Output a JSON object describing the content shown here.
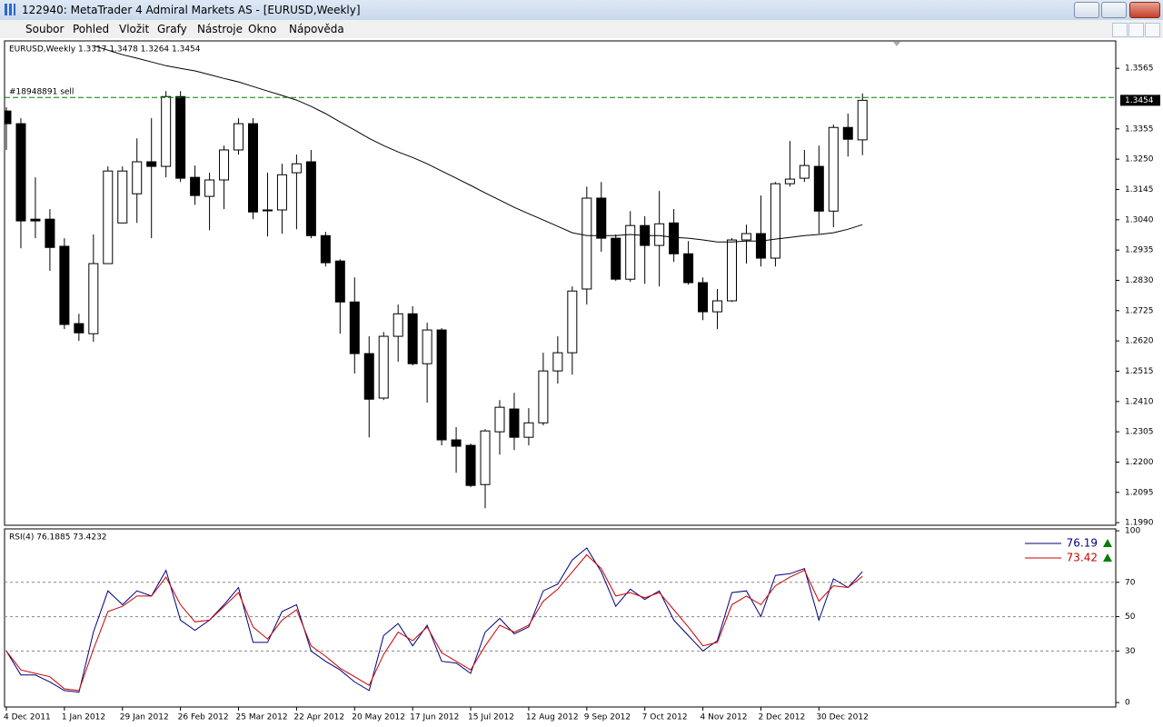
{
  "window": {
    "title": "122940: MetaTrader 4 Admiral Markets AS - [EURUSD,Weekly]",
    "menu": [
      "Soubor",
      "Pohled",
      "Vložit",
      "Grafy",
      "Nástroje",
      "Okno",
      "Nápověda"
    ]
  },
  "chart_data": [
    {
      "type": "candlestick",
      "title": "EURUSD,Weekly  1.3317 1.3478 1.3264 1.3454",
      "categories": [
        "4 Dec 2011",
        null,
        null,
        null,
        "1 Jan 2012",
        null,
        null,
        null,
        "29 Jan 2012",
        null,
        null,
        null,
        "26 Feb 2012",
        null,
        null,
        null,
        "25 Mar 2012",
        null,
        null,
        null,
        "22 Apr 2012",
        null,
        null,
        null,
        "20 May 2012",
        null,
        null,
        null,
        "17 Jun 2012",
        null,
        null,
        null,
        "15 Jul 2012",
        null,
        null,
        null,
        "12 Aug 2012",
        null,
        null,
        null,
        "9 Sep 2012",
        null,
        null,
        null,
        "7 Oct 2012",
        null,
        null,
        null,
        "4 Nov 2012",
        null,
        null,
        null,
        "2 Dec 2012",
        null,
        null,
        null,
        "30 Dec 2012",
        null,
        null,
        null
      ],
      "open": [
        1.3417,
        1.3373,
        1.3042,
        1.3042,
        1.2948,
        1.268,
        1.2645,
        1.2888,
        1.3029,
        1.313,
        1.3241,
        1.3225,
        1.3467,
        1.3187,
        1.3121,
        1.3178,
        1.3282,
        1.3373,
        1.3074,
        1.3074,
        1.3203,
        1.3241,
        1.2985,
        1.2897,
        1.2755,
        1.2576,
        1.2422,
        1.2636,
        1.2714,
        1.2541,
        1.2658,
        1.2277,
        1.2258,
        1.2122,
        1.2305,
        1.2384,
        1.2286,
        1.2336,
        1.2516,
        1.2579,
        1.28,
        1.3115,
        1.2976,
        1.2834,
        1.302,
        1.2951,
        1.3029,
        1.2922,
        1.2822,
        1.2721,
        1.2759,
        1.297,
        1.2992,
        1.2907,
        1.3165,
        1.3184,
        1.3225,
        1.307,
        1.336,
        1.3317
      ],
      "high": [
        1.343,
        1.3392,
        1.3187,
        1.3077,
        1.2976,
        1.2714,
        1.2989,
        1.3225,
        1.3225,
        1.3322,
        1.3392,
        1.3486,
        1.3486,
        1.3228,
        1.3203,
        1.3297,
        1.3392,
        1.3392,
        1.3203,
        1.3234,
        1.3266,
        1.3282,
        1.2998,
        1.2903,
        1.284,
        1.2636,
        1.2651,
        1.2746,
        1.274,
        1.2683,
        1.2664,
        1.2321,
        1.2264,
        1.2314,
        1.2415,
        1.244,
        1.2387,
        1.2579,
        1.2636,
        1.2809,
        1.3155,
        1.3171,
        1.2989,
        1.307,
        1.3052,
        1.314,
        1.3077,
        1.2966,
        1.284,
        1.28,
        1.2976,
        1.3023,
        1.3124,
        1.3171,
        1.3313,
        1.3282,
        1.3297,
        1.337,
        1.3408,
        1.3478
      ],
      "low": [
        1.3282,
        1.2941,
        1.2976,
        1.2863,
        1.2661,
        1.262,
        1.2617,
        1.2888,
        1.3029,
        1.3029,
        1.2976,
        1.3187,
        1.3171,
        1.3092,
        1.3004,
        1.3077,
        1.3266,
        1.3042,
        1.2982,
        1.2992,
        1.3007,
        1.2976,
        1.2878,
        1.2645,
        1.2507,
        1.2286,
        1.2415,
        1.2548,
        1.2535,
        1.2406,
        1.2258,
        1.2163,
        1.2113,
        1.204,
        1.2226,
        1.2242,
        1.2258,
        1.2327,
        1.2472,
        1.2503,
        1.2746,
        1.2929,
        1.2828,
        1.2825,
        1.2818,
        1.2809,
        1.2894,
        1.2815,
        1.2692,
        1.2661,
        1.2755,
        1.2888,
        1.2878,
        1.2878,
        1.3155,
        1.3171,
        1.2992,
        1.3014,
        1.3259,
        1.3264
      ],
      "close": [
        1.3373,
        1.3036,
        1.3036,
        1.2944,
        1.2677,
        1.2648,
        1.2888,
        1.3209,
        1.3209,
        1.3241,
        1.3225,
        1.3467,
        1.3184,
        1.3124,
        1.3178,
        1.3282,
        1.3373,
        1.3067,
        1.3074,
        1.3196,
        1.3234,
        1.2985,
        1.2891,
        1.2755,
        1.2576,
        1.2418,
        1.2636,
        1.2714,
        1.2541,
        1.2658,
        1.2277,
        1.2255,
        1.2119,
        1.2308,
        1.239,
        1.2286,
        1.2336,
        1.2516,
        1.2579,
        1.2793,
        1.3115,
        1.2976,
        1.2834,
        1.302,
        1.2951,
        1.3026,
        1.2922,
        1.2822,
        1.2721,
        1.2759,
        1.297,
        1.2992,
        1.2907,
        1.3165,
        1.3181,
        1.3228,
        1.307,
        1.336,
        1.3319,
        1.3454
      ],
      "ma": {
        "color": "#000000",
        "values": [
          null,
          null,
          null,
          null,
          null,
          null,
          1.3644,
          1.3628,
          1.3612,
          1.36,
          1.3587,
          1.3574,
          1.3565,
          1.3556,
          1.3543,
          1.353,
          1.3518,
          1.3502,
          1.3486,
          1.3471,
          1.3455,
          1.3433,
          1.3408,
          1.3379,
          1.3351,
          1.3322,
          1.3297,
          1.3275,
          1.3256,
          1.3234,
          1.3209,
          1.3184,
          1.3159,
          1.3133,
          1.3108,
          1.3083,
          1.3061,
          1.3039,
          1.3017,
          1.2995,
          1.2985,
          1.2985,
          1.2985,
          1.2989,
          1.2985,
          1.2985,
          1.2979,
          1.2976,
          1.297,
          1.2963,
          1.2963,
          1.2966,
          1.2966,
          1.2973,
          1.2979,
          1.2985,
          1.2989,
          1.2995,
          1.3007,
          1.3023
        ]
      },
      "order": {
        "label": "#18948891 sell",
        "value": 1.3464,
        "color": "#008000"
      },
      "ylim": [
        1.1981,
        1.366
      ],
      "yticks": [
        1.3565,
        1.3355,
        {
          "value": 1.325,
          "label": "1.3250"
        },
        1.3145,
        {
          "value": 1.304,
          "label": "1.3040"
        },
        1.2935,
        {
          "value": 1.283,
          "label": "1.2830"
        },
        1.2725,
        {
          "value": 1.262,
          "label": "1.2620"
        },
        1.2515,
        {
          "value": 1.241,
          "label": "1.2410"
        },
        1.2305,
        {
          "value": 1.22,
          "label": "1.2200"
        },
        1.2095,
        {
          "value": 1.199,
          "label": "1.1990"
        }
      ]
    },
    {
      "type": "line",
      "title": "RSI(4) 76.1885 73.4232",
      "series": [
        {
          "name": "76.19",
          "color": "#000080",
          "values": [
            30,
            16,
            16,
            12,
            7,
            6,
            41,
            65,
            57,
            65,
            62,
            77,
            48,
            42,
            48,
            57,
            67,
            35,
            35,
            53,
            57,
            30,
            24,
            19,
            12,
            7,
            39,
            46,
            33,
            45,
            24,
            23,
            17,
            41,
            49,
            40,
            44,
            65,
            69,
            83,
            90,
            76,
            56,
            66,
            60,
            65,
            48,
            39,
            30,
            36,
            64,
            65,
            50,
            74,
            75,
            78,
            48,
            72,
            67,
            76.1885
          ]
        },
        {
          "name": "73.42",
          "color": "#cc0000",
          "values": [
            30,
            19,
            17,
            15,
            8,
            7,
            31,
            53,
            56,
            62,
            62,
            73,
            57,
            47,
            48,
            56,
            64,
            44,
            37,
            48,
            54,
            33,
            27,
            20,
            15,
            10,
            28,
            41,
            36,
            44,
            29,
            24,
            19,
            33,
            45,
            41,
            45,
            59,
            66,
            76,
            86,
            78,
            62,
            64,
            61,
            64,
            54,
            44,
            33,
            35,
            57,
            62,
            57,
            68,
            73,
            77,
            59,
            68,
            67,
            73.4232
          ]
        }
      ],
      "ylim": [
        -2.6,
        101.1
      ],
      "yticks": [
        0,
        30,
        50,
        70,
        100
      ],
      "levels": [
        30,
        50,
        70
      ]
    }
  ]
}
